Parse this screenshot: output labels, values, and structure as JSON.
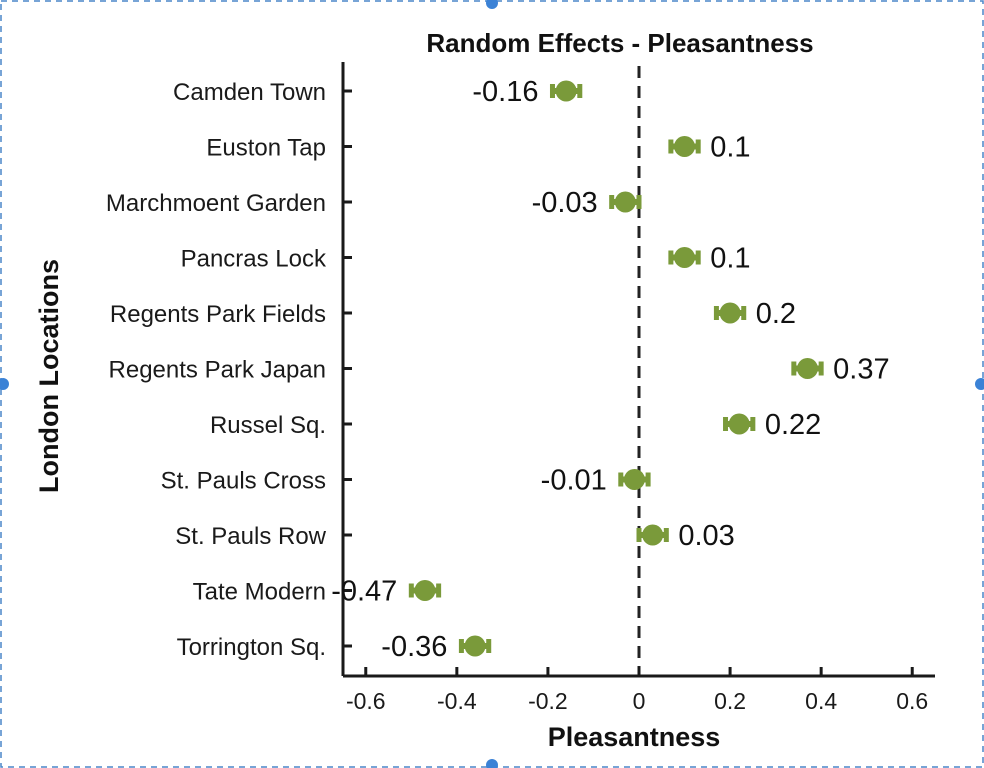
{
  "chart_data": {
    "type": "scatter",
    "title": "Random Effects - Pleasantness",
    "xlabel": "Pleasantness",
    "ylabel": "London Locations",
    "xlim": [
      -0.65,
      0.65
    ],
    "xticks": [
      -0.6,
      -0.4,
      -0.2,
      0,
      0.2,
      0.4,
      0.6
    ],
    "xtick_labels": [
      "-0.6",
      "-0.4",
      "-0.2",
      "0",
      "0.2",
      "0.4",
      "0.6"
    ],
    "reference_line": 0,
    "grid": false,
    "marker_color": "#7a9a3a",
    "categories": [
      "Camden Town",
      "Euston Tap",
      "Marchmoent Garden",
      "Pancras Lock",
      "Regents Park Fields",
      "Regents Park Japan",
      "Russel Sq.",
      "St. Pauls Cross",
      "St. Pauls Row",
      "Tate Modern",
      "Torrington Sq."
    ],
    "values": [
      -0.16,
      0.1,
      -0.03,
      0.1,
      0.2,
      0.37,
      0.22,
      -0.01,
      0.03,
      -0.47,
      -0.36
    ],
    "value_labels": [
      "-0.16",
      "0.1",
      "-0.03",
      "0.1",
      "0.2",
      "0.37",
      "0.22",
      "-0.01",
      "0.03",
      "-0.47",
      "-0.36"
    ],
    "error_low": [
      -0.19,
      0.07,
      -0.06,
      0.07,
      0.17,
      0.34,
      0.19,
      -0.04,
      0.0,
      -0.5,
      -0.39
    ],
    "error_high": [
      -0.13,
      0.13,
      0.0,
      0.13,
      0.23,
      0.4,
      0.25,
      0.02,
      0.06,
      -0.44,
      -0.33
    ]
  }
}
